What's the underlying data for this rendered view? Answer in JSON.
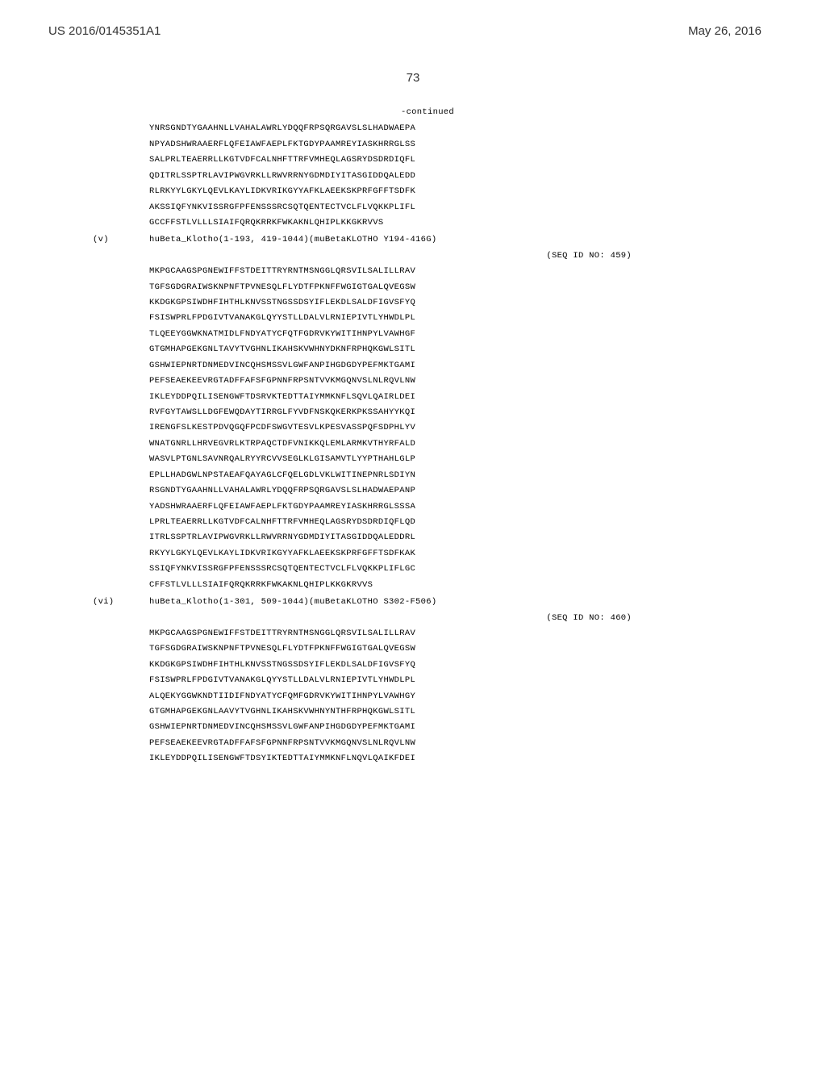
{
  "header": {
    "left": "US 2016/0145351A1",
    "right": "May 26, 2016",
    "page": "73"
  },
  "continued": "-continued",
  "blocks": [
    {
      "type": "seq",
      "lines": [
        "YNRSGNDTYGAAHNLLVAHALAWRLYDQQFRPSQRGAVSLSLHADWAEPA",
        "NPYADSHWRAAERFLQFEIAWFAEPLFKTGDYPAAMREYIASKHRRGLSS",
        "SALPRLTEAERRLLKGTVDFCALNHFTTRFVMHEQLAGSRYDSDRDIQFL",
        "QDITRLSSPTRLAVIPWGVRKLLRWVRRNYGDMDIYITASGIDDQALEDD",
        "RLRKYYLGKYLQEVLKAYLIDKVRIKGYYAFKLAEEKSKPRFGFFTSDFK",
        "AKSSIQFYNKVISSRGFPFENSSSRCSQTQENTECTVCLFLVQKKPLIFL",
        "GCCFFSTLVLLLSIAIFQRQKRRKFWKAKNLQHIPLKKGKRVVS"
      ]
    },
    {
      "type": "entry",
      "num": "(v)",
      "title": "huBeta_Klotho(1-193, 419-1044)(muBetaKLOTHO Y194-416G)",
      "seq_id": "(SEQ ID NO: 459)",
      "lines": [
        "MKPGCAAGSPGNEWIFFSTDEITTRYRNTMSNGGLQRSVILSALILLRAV",
        "TGFSGDGRAIWSKNPNFTPVNESQLFLYDTFPKNFFWGIGTGALQVEGSW",
        "KKDGKGPSIWDHFIHTHLKNVSSTNGSSDSYIFLEKDLSALDFIGVSFYQ",
        "FSISWPRLFPDGIVTVANAKGLQYYSTLLDALVLRNIEPIVTLYHWDLPL",
        "TLQEEYGGWKNATMIDLFNDYATYCFQTFGDRVKYWITIHNPYLVAWHGF",
        "GTGMHAPGEKGNLTAVYTVGHNLIKAHSKVWHNYDKNFRPHQKGWLSITL",
        "GSHWIEPNRTDNMEDVINCQHSMSSVLGWFANPIHGDGDYPEFMKTGAMI",
        "PEFSEAEKEEVRGTADFFAFSFGPNNFRPSNTVVKMGQNVSLNLRQVLNW",
        "IKLEYDDPQILISENGWFTDSRVKTEDTTAIYMMKNFLSQVLQAIRLDEI",
        "RVFGYTAWSLLDGFEWQDAYTIRRGLFYVDFNSKQKERKPKSSAHYYKQI",
        "IRENGFSLKESTPDVQGQFPCDFSWGVTESVLKPESVASSPQFSDPHLYV",
        "WNATGNRLLHRVEGVRLKTRPAQCTDFVNIKKQLEMLARMKVTHYRFALD",
        "WASVLPTGNLSAVNRQALRYYRCVVSEGLKLGISAMVTLYYPTHAHLGLP",
        "EPLLHADGWLNPSTAEAFQAYAGLCFQELGDLVKLWITINEPNRLSDIYN",
        "RSGNDTYGAAHNLLVAHALAWRLYDQQFRPSQRGAVSLSLHADWAEPANP",
        "YADSHWRAAERFLQFEIAWFAEPLFKTGDYPAAMREYIASKHRRGLSSSA",
        "LPRLTEAERRLLKGTVDFCALNHFTTRFVMHEQLAGSRYDSDRDIQFLQD",
        "ITRLSSPTRLAVIPWGVRKLLRWVRRNYGDMDIYITASGIDDQALEDDRL",
        "RKYYLGKYLQEVLKAYLIDKVRIKGYYAFKLAEEKSKPRFGFFTSDFKAK",
        "SSIQFYNKVISSRGFPFENSSSRCSQTQENTECTVCLFLVQKKPLIFLGC",
        "CFFSTLVLLLSIAIFQRQKRRKFWKAKNLQHIPLKKGKRVVS"
      ]
    },
    {
      "type": "entry",
      "num": "(vi)",
      "title": "huBeta_Klotho(1-301, 509-1044)(muBetaKLOTHO S302-F506)",
      "seq_id": "(SEQ ID NO: 460)",
      "lines": [
        "MKPGCAAGSPGNEWIFFSTDEITTRYRNTMSNGGLQRSVILSALILLRAV",
        "TGFSGDGRAIWSKNPNFTPVNESQLFLYDTFPKNFFWGIGTGALQVEGSW",
        "KKDGKGPSIWDHFIHTHLKNVSSTNGSSDSYIFLEKDLSALDFIGVSFYQ",
        "FSISWPRLFPDGIVTVANAKGLQYYSTLLDALVLRNIEPIVTLYHWDLPL",
        "ALQEKYGGWKNDTIIDIFNDYATYCFQMFGDRVKYWITIHNPYLVAWHGY",
        "GTGMHAPGEKGNLAAVYTVGHNLIKAHSKVWHNYNTHFRPHQKGWLSITL",
        "GSHWIEPNRTDNMEDVINCQHSMSSVLGWFANPIHGDGDYPEFMKTGAMI",
        "PEFSEAEKEEVRGTADFFAFSFGPNNFRPSNTVVKMGQNVSLNLRQVLNW",
        "IKLEYDDPQILISENGWFTDSYIKTEDTTAIYMMKNFLNQVLQAIKFDEI"
      ]
    }
  ],
  "style": {
    "background_color": "#ffffff",
    "text_color": "#000000",
    "header_color": "#333333",
    "header_font_family": "Arial, Helvetica, sans-serif",
    "seq_font_family": "Courier New, Courier, monospace",
    "header_fontsize": 15,
    "seq_fontsize": 10.5,
    "line_height": 1.85
  }
}
